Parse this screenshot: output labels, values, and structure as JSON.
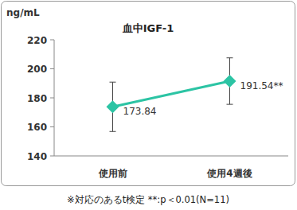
{
  "chart_data": {
    "type": "line",
    "title": "血中IGF-1",
    "y_label": "ng/mL",
    "categories": [
      "使用前",
      "使用4週後"
    ],
    "values": [
      173.84,
      191.54
    ],
    "errors": [
      17,
      16
    ],
    "value_labels": [
      "173.84",
      "191.54**"
    ],
    "data_labels": true,
    "color": "#2cc4a4",
    "marker": "diamond",
    "ylim": [
      140,
      220
    ],
    "yticks": [
      140,
      160,
      180,
      200,
      220
    ],
    "grid": false,
    "note": "※対応のあるt検定 **:p＜0.01(N=11)"
  }
}
